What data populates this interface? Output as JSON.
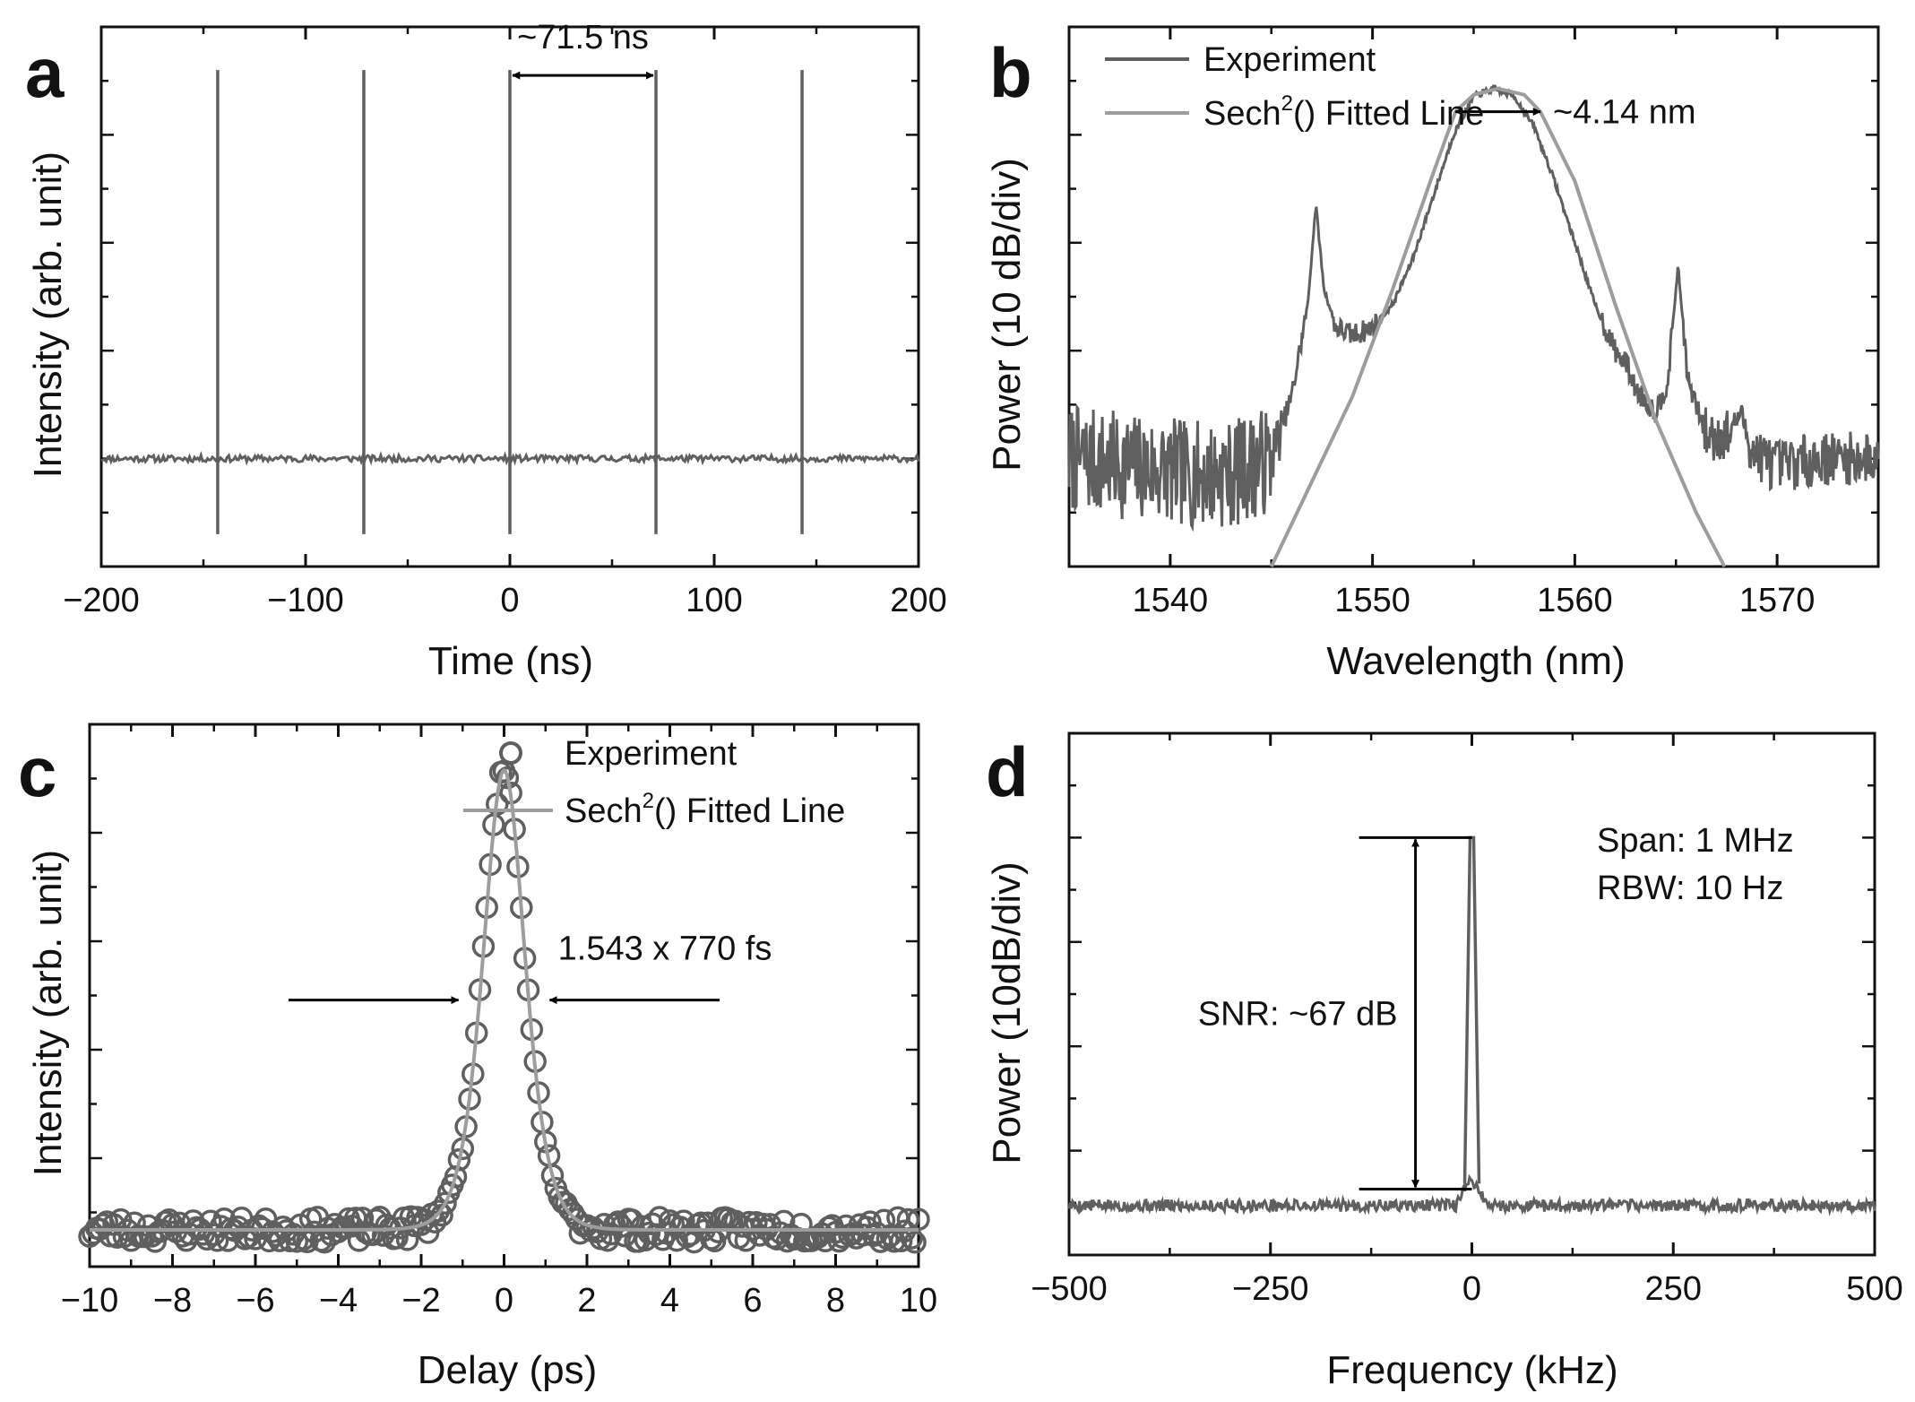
{
  "colors": {
    "experiment": "#5f5f5f",
    "fit": "#9d9d9d",
    "axis": "#111111",
    "annotation": "#000000"
  },
  "chart_data": [
    {
      "panel": "a",
      "type": "line",
      "xlabel": "Time (ns)",
      "ylabel": "Intensity (arb. unit)",
      "xlim": [
        -200,
        200
      ],
      "ylim": [
        -1,
        4
      ],
      "xticks": [
        -200,
        -100,
        0,
        100,
        200
      ],
      "xtick_labels": [
        "−200",
        "−100",
        "0",
        "100",
        "200"
      ],
      "baseline": 0,
      "pulse_times": [
        -143,
        -71.5,
        0,
        71.5,
        143
      ],
      "pulse_peak": 3.6,
      "pulse_dip": -0.7,
      "annotation": {
        "text": "~71.5 ns",
        "from": 0,
        "to": 71.5,
        "y": 3.55
      }
    },
    {
      "panel": "b",
      "type": "line",
      "xlabel": "Wavelength (nm)",
      "ylabel": "Power (10 dB/div)",
      "xlim": [
        1535,
        1575
      ],
      "ylim": [
        -72,
        -2
      ],
      "xticks": [
        1540,
        1550,
        1560,
        1570
      ],
      "xtick_labels": [
        "1540",
        "1550",
        "1560",
        "1570"
      ],
      "legend": {
        "position": "top-left",
        "entries": [
          {
            "label": "Experiment",
            "series": "experiment"
          },
          {
            "label_main": "Sech",
            "label_sup": "2",
            "label_rest": "() Fitted Line",
            "series": "fit"
          }
        ]
      },
      "experiment": {
        "x": [
          1535,
          1538,
          1541,
          1543,
          1545,
          1546,
          1546.8,
          1547.2,
          1547.6,
          1548.2,
          1549,
          1550,
          1551,
          1552,
          1553,
          1554,
          1555,
          1556,
          1557,
          1558,
          1559,
          1560,
          1561,
          1562,
          1562.6,
          1563,
          1564,
          1564.6,
          1565.1,
          1565.6,
          1566.5,
          1567.5,
          1568.2,
          1568.8,
          1570,
          1572,
          1575
        ],
        "y": [
          -58,
          -59,
          -60,
          -60,
          -58,
          -50,
          -38,
          -25,
          -36,
          -41,
          -42,
          -41,
          -38,
          -32,
          -24,
          -16,
          -11,
          -10,
          -11,
          -15,
          -22,
          -30,
          -38,
          -44,
          -46,
          -49,
          -52,
          -48,
          -33,
          -48,
          -55,
          -55,
          -52,
          -57,
          -59,
          -58,
          -58
        ]
      },
      "fit": {
        "x": [
          1545,
          1547,
          1549,
          1551,
          1553,
          1554.1,
          1555,
          1556.2,
          1557.5,
          1558.3,
          1560,
          1562,
          1564,
          1566,
          1567.4
        ],
        "y": [
          -72,
          -61,
          -50,
          -36,
          -21,
          -13,
          -10.8,
          -10,
          -10.8,
          -13,
          -22,
          -38,
          -53,
          -65,
          -72
        ]
      },
      "annotation": {
        "text": "~4.14 nm",
        "from": 1554.1,
        "to": 1558.3,
        "y": -13
      }
    },
    {
      "panel": "c",
      "type": "scatter",
      "xlabel": "Delay (ps)",
      "ylabel": "Intensity (arb. unit)",
      "xlim": [
        -10,
        10
      ],
      "ylim": [
        -0.08,
        1.1
      ],
      "xticks": [
        -10,
        -8,
        -6,
        -4,
        -2,
        0,
        2,
        4,
        6,
        8,
        10
      ],
      "xtick_labels": [
        "−10",
        "−8",
        "−6",
        "−4",
        "−2",
        "0",
        "2",
        "4",
        "6",
        "8",
        "10"
      ],
      "baseline": 0,
      "peak": 1.0,
      "legend": {
        "position": "top-right",
        "entries": [
          {
            "label": "Experiment",
            "series": "experiment"
          },
          {
            "label_main": "Sech",
            "label_sup": "2",
            "label_rest": "() Fitted Line",
            "series": "fit"
          }
        ]
      },
      "fwhm_ps": 1.19,
      "annotation": {
        "text": "1.543 x 770 fs",
        "arrow_y": 0.5,
        "left_arrow": [
          -5.2,
          -1.1
        ],
        "right_arrow": [
          5.2,
          1.1
        ]
      }
    },
    {
      "panel": "d",
      "type": "line",
      "xlabel": "Frequency (kHz)",
      "ylabel": "Power (10dB/div)",
      "xlim": [
        -500,
        500
      ],
      "ylim": [
        -90,
        5
      ],
      "xticks": [
        -500,
        -250,
        0,
        250,
        500
      ],
      "xtick_labels": [
        "−500",
        "−250",
        "0",
        "250",
        "500"
      ],
      "noise_floor": -81,
      "peak": -14,
      "info": [
        "Span: 1 MHz",
        "RBW: 10 Hz"
      ],
      "annotation": {
        "text": "SNR: ~67 dB",
        "top": -14,
        "bottom": -78
      }
    }
  ]
}
